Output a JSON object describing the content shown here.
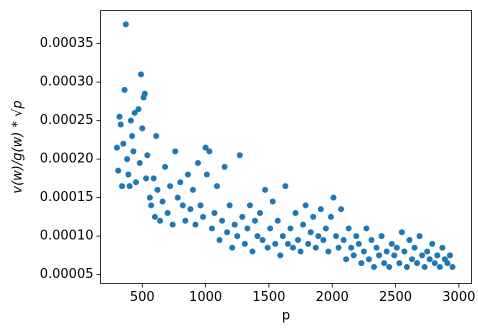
{
  "chart_data": {
    "type": "scatter",
    "x_label": "p",
    "y_label": "v(w)/g(w) * √p",
    "xlim": [
      170,
      3100
    ],
    "ylim": [
      3.85e-05,
      0.000393
    ],
    "xticks": [
      500,
      1000,
      1500,
      2000,
      2500,
      3000
    ],
    "yticks": [
      {
        "value": 5e-05,
        "label": "0.00005"
      },
      {
        "value": 0.0001,
        "label": "0.00010"
      },
      {
        "value": 0.00015,
        "label": "0.00015"
      },
      {
        "value": 0.0002,
        "label": "0.00020"
      },
      {
        "value": 0.00025,
        "label": "0.00025"
      },
      {
        "value": 0.0003,
        "label": "0.00030"
      },
      {
        "value": 0.00035,
        "label": "0.00035"
      }
    ],
    "grid": false,
    "x": [
      300,
      310,
      320,
      330,
      340,
      350,
      360,
      370,
      380,
      390,
      400,
      410,
      420,
      430,
      440,
      450,
      470,
      480,
      490,
      500,
      510,
      520,
      530,
      540,
      560,
      570,
      590,
      600,
      610,
      620,
      640,
      660,
      680,
      700,
      720,
      740,
      760,
      780,
      800,
      820,
      840,
      860,
      880,
      900,
      920,
      940,
      960,
      980,
      1000,
      1010,
      1030,
      1050,
      1070,
      1090,
      1110,
      1130,
      1150,
      1170,
      1190,
      1210,
      1230,
      1250,
      1270,
      1290,
      1310,
      1330,
      1350,
      1370,
      1390,
      1410,
      1430,
      1450,
      1470,
      1490,
      1510,
      1530,
      1550,
      1570,
      1590,
      1610,
      1630,
      1650,
      1670,
      1690,
      1710,
      1730,
      1750,
      1770,
      1790,
      1810,
      1830,
      1850,
      1870,
      1890,
      1910,
      1930,
      1950,
      1970,
      1990,
      2010,
      2030,
      2050,
      2070,
      2090,
      2110,
      2130,
      2150,
      2170,
      2190,
      2210,
      2230,
      2250,
      2270,
      2290,
      2310,
      2330,
      2350,
      2370,
      2390,
      2410,
      2430,
      2450,
      2470,
      2490,
      2510,
      2530,
      2550,
      2570,
      2590,
      2610,
      2630,
      2650,
      2670,
      2690,
      2710,
      2730,
      2750,
      2770,
      2790,
      2810,
      2830,
      2850,
      2870,
      2890,
      2910,
      2930,
      2950
    ],
    "series": [
      {
        "color": "#1f77b4",
        "values": [
          0.000215,
          0.000185,
          0.000255,
          0.000245,
          0.000165,
          0.00022,
          0.00029,
          0.000375,
          0.0002,
          0.00018,
          0.000165,
          0.00025,
          0.00023,
          0.00021,
          0.00026,
          0.00017,
          0.000265,
          0.000195,
          0.00031,
          0.00024,
          0.00028,
          0.000285,
          0.000175,
          0.000205,
          0.00015,
          0.00014,
          0.000175,
          0.000125,
          0.00023,
          0.00016,
          0.00012,
          0.000145,
          0.00019,
          0.00013,
          0.000165,
          0.000115,
          0.00021,
          0.00015,
          0.00017,
          0.00014,
          0.00012,
          0.00018,
          0.000135,
          0.00016,
          0.000115,
          0.000195,
          0.00014,
          0.000125,
          0.000215,
          0.00018,
          0.00021,
          0.00011,
          0.00013,
          0.000165,
          9.5e-05,
          0.00012,
          0.00019,
          0.000105,
          0.00014,
          8.5e-05,
          0.000115,
          0.0001,
          0.000205,
          0.000125,
          9e-05,
          0.00011,
          0.00014,
          8e-05,
          0.00012,
          0.0001,
          0.00013,
          9.5e-05,
          0.00016,
          8.5e-05,
          0.00011,
          0.000145,
          9e-05,
          0.00012,
          7.5e-05,
          0.0001,
          0.000165,
          9e-05,
          0.00011,
          8.5e-05,
          0.00013,
          9.5e-05,
          8e-05,
          0.000115,
          0.00014,
          9e-05,
          0.000105,
          0.000125,
          8.5e-05,
          0.0001,
          0.000135,
          9.5e-05,
          0.00011,
          8e-05,
          0.000125,
          0.00015,
          0.0001,
          8.5e-05,
          0.000135,
          9.5e-05,
          7e-05,
          0.00011,
          8.5e-05,
          7.5e-05,
          0.0001,
          9e-05,
          6.5e-05,
          8e-05,
          0.00011,
          7e-05,
          9.5e-05,
          6e-05,
          8.5e-05,
          7.5e-05,
          0.0001,
          6.5e-05,
          8e-05,
          6e-05,
          9e-05,
          7.5e-05,
          8.5e-05,
          6.5e-05,
          0.000105,
          8e-05,
          6e-05,
          9.5e-05,
          7e-05,
          8.5e-05,
          6.5e-05,
          0.0001,
          7.5e-05,
          6e-05,
          8e-05,
          7e-05,
          9e-05,
          6.5e-05,
          7.5e-05,
          6e-05,
          8.5e-05,
          7e-05,
          6.5e-05,
          7.5e-05,
          6e-05
        ]
      }
    ]
  }
}
